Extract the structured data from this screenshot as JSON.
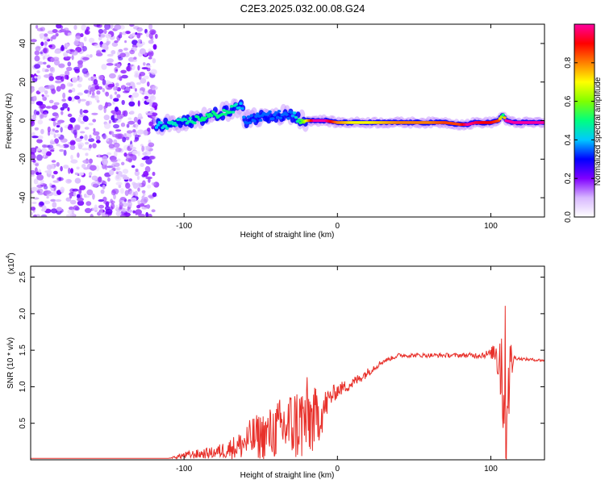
{
  "title": "C2E3.2025.032.00.08.G24",
  "chart_data": [
    {
      "type": "heatmap",
      "xlabel": "Height of straight line (km)",
      "ylabel": "Frequency (Hz)",
      "xlim": [
        -200,
        135
      ],
      "ylim": [
        -50,
        50
      ],
      "xticks": [
        -100,
        0,
        100
      ],
      "xtick_labels": [
        "-100",
        "0",
        "100"
      ],
      "yticks": [
        -40,
        -20,
        0,
        20,
        40
      ],
      "ytick_labels": [
        "-40",
        "-20",
        "0",
        "20",
        "40"
      ],
      "colorbar": {
        "label": "Normalized spectral amplitude",
        "range": [
          0,
          1
        ],
        "ticks": [
          0.0,
          0.2,
          0.4,
          0.6,
          0.8
        ],
        "tick_labels": [
          "0.0",
          "0.2",
          "0.4",
          "0.6",
          "0.8"
        ],
        "colors": [
          "#ffffff",
          "#d8b8ff",
          "#8000ff",
          "#0000ff",
          "#00c8ff",
          "#00ff80",
          "#80ff00",
          "#ffff00",
          "#ff8000",
          "#ff0000",
          "#ff00a0"
        ]
      },
      "noise_region": {
        "x": [
          -200,
          -118
        ],
        "y": [
          -50,
          50
        ]
      },
      "ridge": {
        "x": [
          -118,
          -110,
          -100,
          -90,
          -80,
          -70,
          -63,
          -60,
          -50,
          -40,
          -30,
          -22,
          -15,
          -8,
          0,
          10,
          20,
          30,
          40,
          50,
          60,
          70,
          80,
          85,
          90,
          95,
          100,
          105,
          108,
          110,
          115,
          120,
          125,
          135
        ],
        "y": [
          -3,
          -2,
          -1,
          1,
          3,
          5,
          8,
          0,
          2,
          3,
          3,
          0,
          0,
          0,
          -1,
          -1,
          -1,
          -1,
          -1,
          -1,
          -1,
          -1,
          -2,
          -2,
          -1,
          -1,
          -1,
          0,
          3,
          0,
          -1,
          -1,
          -1,
          -1
        ],
        "amplitude": [
          0.4,
          0.45,
          0.45,
          0.5,
          0.5,
          0.5,
          0.4,
          0.35,
          0.35,
          0.35,
          0.35,
          0.6,
          1.0,
          1.0,
          0.8,
          0.7,
          0.7,
          0.75,
          0.8,
          0.8,
          0.8,
          0.85,
          0.85,
          1.0,
          0.95,
          0.9,
          0.9,
          0.85,
          0.5,
          1.0,
          1.0,
          1.0,
          1.0,
          1.0
        ]
      }
    },
    {
      "type": "line",
      "xlabel": "Height of straight line (km)",
      "ylabel": "SNR (10 * v/v)",
      "y_multiplier": "(x10",
      "y_multiplier_exp": "4",
      "y_multiplier_close": ")",
      "xlim": [
        -200,
        135
      ],
      "ylim": [
        0,
        2.65
      ],
      "xticks": [
        -100,
        0,
        100
      ],
      "xtick_labels": [
        "-100",
        "0",
        "100"
      ],
      "yticks": [
        0.5,
        1.0,
        1.5,
        2.0,
        2.5
      ],
      "ytick_labels": [
        "0.5",
        "1.0",
        "1.5",
        "2.0",
        "2.5"
      ],
      "color": "#e8302a",
      "envelope": {
        "x": [
          -200,
          -110,
          -100,
          -80,
          -65,
          -55,
          -45,
          -35,
          -25,
          -20,
          -15,
          -10,
          -5,
          0,
          10,
          20,
          25,
          30,
          40,
          50,
          60,
          70,
          80,
          90,
          100,
          103,
          106,
          108,
          110,
          112,
          115,
          120,
          135
        ],
        "y": [
          0.02,
          0.02,
          0.06,
          0.1,
          0.18,
          0.3,
          0.35,
          0.45,
          0.5,
          0.55,
          0.55,
          0.65,
          0.85,
          0.95,
          1.05,
          1.2,
          1.28,
          1.35,
          1.43,
          1.43,
          1.43,
          1.43,
          1.43,
          1.43,
          1.45,
          1.5,
          1.4,
          1.2,
          0.9,
          1.2,
          1.4,
          1.38,
          1.36
        ],
        "noise": [
          0.0,
          0.0,
          0.05,
          0.08,
          0.18,
          0.3,
          0.35,
          0.45,
          0.55,
          0.6,
          0.45,
          0.3,
          0.15,
          0.1,
          0.08,
          0.06,
          0.05,
          0.03,
          0.03,
          0.03,
          0.03,
          0.03,
          0.03,
          0.04,
          0.06,
          0.2,
          0.6,
          1.1,
          1.2,
          0.6,
          0.03,
          0.02,
          0.02
        ]
      }
    }
  ]
}
